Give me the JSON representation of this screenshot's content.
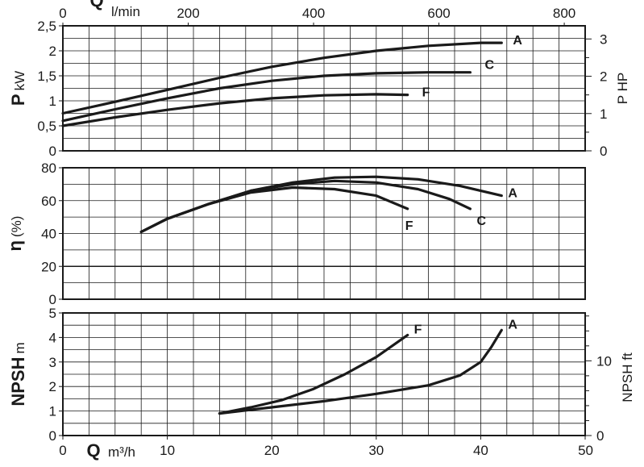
{
  "chart_data": [
    {
      "type": "line",
      "ylabel_main": "P",
      "ylabel_unit": "kW",
      "y2label": "P HP",
      "top_axis_label": "Q",
      "top_axis_unit": "l/min",
      "top_ticks": [
        "0",
        "200",
        "400",
        "600",
        "800"
      ],
      "xlim": [
        0,
        50
      ],
      "ylim": [
        0,
        2.5
      ],
      "y_ticks": [
        "0",
        "0,5",
        "1",
        "1,5",
        "2",
        "2,5"
      ],
      "y2_ticks": [
        "0",
        "1",
        "2",
        "3"
      ],
      "grid": true,
      "series": [
        {
          "name": "A",
          "x": [
            0,
            5,
            10,
            15,
            20,
            25,
            30,
            35,
            40,
            42
          ],
          "y": [
            0.75,
            0.98,
            1.22,
            1.46,
            1.68,
            1.86,
            2.0,
            2.1,
            2.16,
            2.16
          ]
        },
        {
          "name": "C",
          "x": [
            0,
            5,
            10,
            15,
            20,
            25,
            30,
            35,
            39
          ],
          "y": [
            0.6,
            0.83,
            1.05,
            1.25,
            1.4,
            1.5,
            1.55,
            1.57,
            1.57
          ]
        },
        {
          "name": "F",
          "x": [
            0,
            5,
            10,
            15,
            20,
            25,
            30,
            33
          ],
          "y": [
            0.5,
            0.67,
            0.82,
            0.95,
            1.05,
            1.11,
            1.13,
            1.12
          ]
        }
      ]
    },
    {
      "type": "line",
      "ylabel_main": "η",
      "ylabel_unit": "(%)",
      "xlim": [
        0,
        50
      ],
      "ylim": [
        0,
        80
      ],
      "y_ticks": [
        "0",
        "20",
        "40",
        "60",
        "80"
      ],
      "grid": true,
      "series": [
        {
          "name": "A",
          "x": [
            7.5,
            10,
            14,
            18,
            22,
            26,
            30,
            34,
            38,
            42
          ],
          "y": [
            41,
            49,
            58,
            66,
            71,
            74,
            74.5,
            73,
            69,
            63
          ]
        },
        {
          "name": "C",
          "x": [
            7.5,
            10,
            14,
            18,
            22,
            26,
            30,
            34,
            37,
            39
          ],
          "y": [
            41,
            49,
            58,
            66,
            70,
            72,
            71,
            67,
            61,
            55
          ]
        },
        {
          "name": "F",
          "x": [
            7.5,
            10,
            14,
            18,
            22,
            26,
            30,
            33
          ],
          "y": [
            41,
            49,
            58,
            65,
            68,
            67,
            63,
            55
          ]
        }
      ]
    },
    {
      "type": "line",
      "ylabel_main": "NPSH",
      "ylabel_unit": "m",
      "y2label": "NPSH ft",
      "bottom_axis_label": "Q",
      "bottom_axis_unit": "m³/h",
      "xlim": [
        0,
        50
      ],
      "ylim": [
        0,
        5
      ],
      "x_ticks": [
        "0",
        "10",
        "20",
        "30",
        "40",
        "50"
      ],
      "y_ticks": [
        "0",
        "1",
        "2",
        "3",
        "4",
        "5"
      ],
      "y2_ticks": [
        "0",
        "10"
      ],
      "grid": true,
      "series": [
        {
          "name": "F",
          "x": [
            15,
            18,
            21,
            24,
            27,
            30,
            33
          ],
          "y": [
            0.9,
            1.15,
            1.45,
            1.9,
            2.5,
            3.2,
            4.1
          ]
        },
        {
          "name": "A",
          "x": [
            15,
            20,
            25,
            30,
            35,
            38,
            40,
            41,
            42
          ],
          "y": [
            0.9,
            1.15,
            1.4,
            1.7,
            2.05,
            2.45,
            3.0,
            3.6,
            4.3
          ]
        }
      ]
    }
  ]
}
